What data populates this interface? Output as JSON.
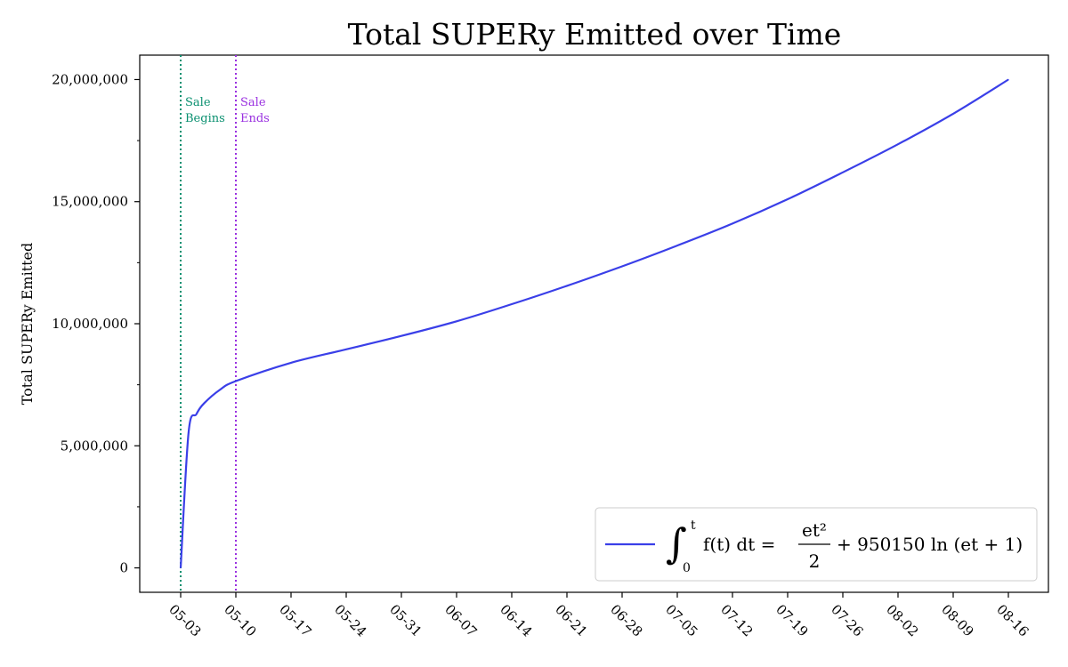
{
  "chart_data": {
    "type": "line",
    "title": "Total SUPERy Emitted over Time",
    "xlabel": "",
    "ylabel": "Total SUPERy Emitted",
    "x_start": "05-03",
    "x_end": "08-16",
    "xticks": [
      "05-03",
      "05-10",
      "05-17",
      "05-24",
      "05-31",
      "06-07",
      "06-14",
      "06-21",
      "06-28",
      "07-05",
      "07-12",
      "07-19",
      "07-26",
      "08-02",
      "08-09",
      "08-16"
    ],
    "ylim": [
      -1000000,
      21000000
    ],
    "yticks": [
      0,
      5000000,
      10000000,
      15000000,
      20000000
    ],
    "ytick_labels": [
      "0",
      "5,000,000",
      "10,000,000",
      "15,000,000",
      "20,000,000"
    ],
    "grid": false,
    "legend_position": "lower-right",
    "series": [
      {
        "name": "∫₀ᵗ f(t) dt = et²/2 + 950150 ln(et + 1)",
        "color": "#3a3fe8",
        "x": [
          "05-03",
          "05-04",
          "05-05",
          "05-06",
          "05-08",
          "05-10",
          "05-17",
          "05-24",
          "05-31",
          "06-07",
          "06-14",
          "06-21",
          "06-28",
          "07-05",
          "07-12",
          "07-19",
          "07-26",
          "08-02",
          "08-09",
          "08-16"
        ],
        "y": [
          0,
          5550000,
          6300000,
          6750000,
          7300000,
          7650000,
          8400000,
          8950000,
          9500000,
          10100000,
          10800000,
          11550000,
          12350000,
          13200000,
          14100000,
          15100000,
          16200000,
          17350000,
          18600000,
          20000000
        ]
      }
    ],
    "annotations": [
      {
        "x": "05-03",
        "label_line1": "Sale",
        "label_line2": "Begins",
        "color": "#0a9070"
      },
      {
        "x": "05-10",
        "label_line1": "Sale",
        "label_line2": "Ends",
        "color": "#9a30e0"
      }
    ],
    "legend": {
      "integral_lower": "0",
      "integral_upper": "t",
      "lhs": "f(t) dt =",
      "frac_num": "et²",
      "frac_den": "2",
      "rhs": "+ 950150 ln (et + 1)"
    }
  }
}
